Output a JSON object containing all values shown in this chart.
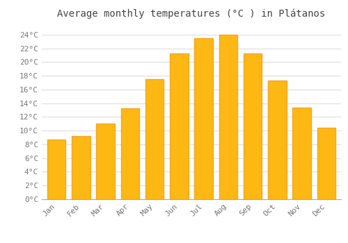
{
  "title": "Average monthly temperatures (°C ) in Plátanos",
  "months": [
    "Jan",
    "Feb",
    "Mar",
    "Apr",
    "May",
    "Jun",
    "Jul",
    "Aug",
    "Sep",
    "Oct",
    "Nov",
    "Dec"
  ],
  "values": [
    8.7,
    9.2,
    11.0,
    13.3,
    17.5,
    21.2,
    23.5,
    24.0,
    21.3,
    17.3,
    13.4,
    10.4
  ],
  "bar_color": "#FDB813",
  "bar_edge_color": "#F5A623",
  "background_color": "#FFFFFF",
  "grid_color": "#DDDDDD",
  "text_color": "#777777",
  "ytick_labels": [
    "0°C",
    "2°C",
    "4°C",
    "6°C",
    "8°C",
    "10°C",
    "12°C",
    "14°C",
    "16°C",
    "18°C",
    "20°C",
    "22°C",
    "24°C"
  ],
  "ytick_values": [
    0,
    2,
    4,
    6,
    8,
    10,
    12,
    14,
    16,
    18,
    20,
    22,
    24
  ],
  "ylim": [
    0,
    25.5
  ],
  "title_fontsize": 10,
  "tick_fontsize": 8,
  "font_family": "monospace"
}
